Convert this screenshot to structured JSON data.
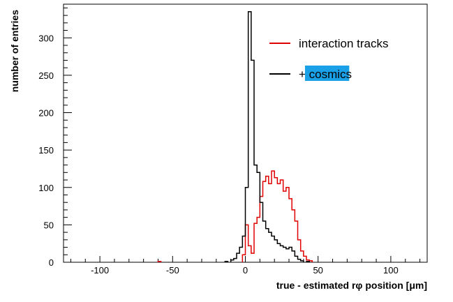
{
  "chart_data": {
    "type": "histogram",
    "title": "",
    "xlabel": "true - estimated rφ position [μm]",
    "ylabel": "number of entries",
    "xlim": [
      -125,
      125
    ],
    "ylim": [
      0,
      345
    ],
    "xticks": [
      -100,
      -50,
      0,
      50,
      100
    ],
    "yticks": [
      0,
      50,
      100,
      150,
      200,
      250,
      300
    ],
    "grid": false,
    "legend_position": "top-right",
    "bin_width": 2,
    "series": [
      {
        "name": "interaction tracks",
        "color": "#e00000",
        "highlight": false,
        "bins": [
          [
            -60,
            1
          ],
          [
            -2,
            10
          ],
          [
            0,
            50
          ],
          [
            2,
            22
          ],
          [
            4,
            12
          ],
          [
            6,
            52
          ],
          [
            8,
            60
          ],
          [
            10,
            88
          ],
          [
            12,
            108
          ],
          [
            14,
            115
          ],
          [
            16,
            105
          ],
          [
            18,
            122
          ],
          [
            20,
            113
          ],
          [
            22,
            105
          ],
          [
            24,
            110
          ],
          [
            26,
            95
          ],
          [
            28,
            100
          ],
          [
            30,
            85
          ],
          [
            32,
            70
          ],
          [
            34,
            55
          ],
          [
            36,
            30
          ],
          [
            38,
            15
          ],
          [
            40,
            8
          ],
          [
            42,
            3
          ],
          [
            44,
            2
          ]
        ]
      },
      {
        "name": "+ cosmics",
        "color": "#000000",
        "highlight": true,
        "highlight_word": "cosmics",
        "highlight_color": "#1aa0e6",
        "bins": [
          [
            -14,
            1
          ],
          [
            -10,
            3
          ],
          [
            -8,
            5
          ],
          [
            -6,
            12
          ],
          [
            -4,
            20
          ],
          [
            -2,
            35
          ],
          [
            0,
            100
          ],
          [
            2,
            335
          ],
          [
            4,
            270
          ],
          [
            6,
            130
          ],
          [
            8,
            120
          ],
          [
            10,
            80
          ],
          [
            12,
            55
          ],
          [
            14,
            45
          ],
          [
            16,
            40
          ],
          [
            18,
            35
          ],
          [
            20,
            30
          ],
          [
            22,
            25
          ],
          [
            24,
            22
          ],
          [
            26,
            20
          ],
          [
            28,
            18
          ],
          [
            30,
            20
          ],
          [
            32,
            15
          ],
          [
            34,
            8
          ],
          [
            36,
            4
          ],
          [
            38,
            2
          ],
          [
            42,
            1
          ]
        ]
      }
    ]
  }
}
